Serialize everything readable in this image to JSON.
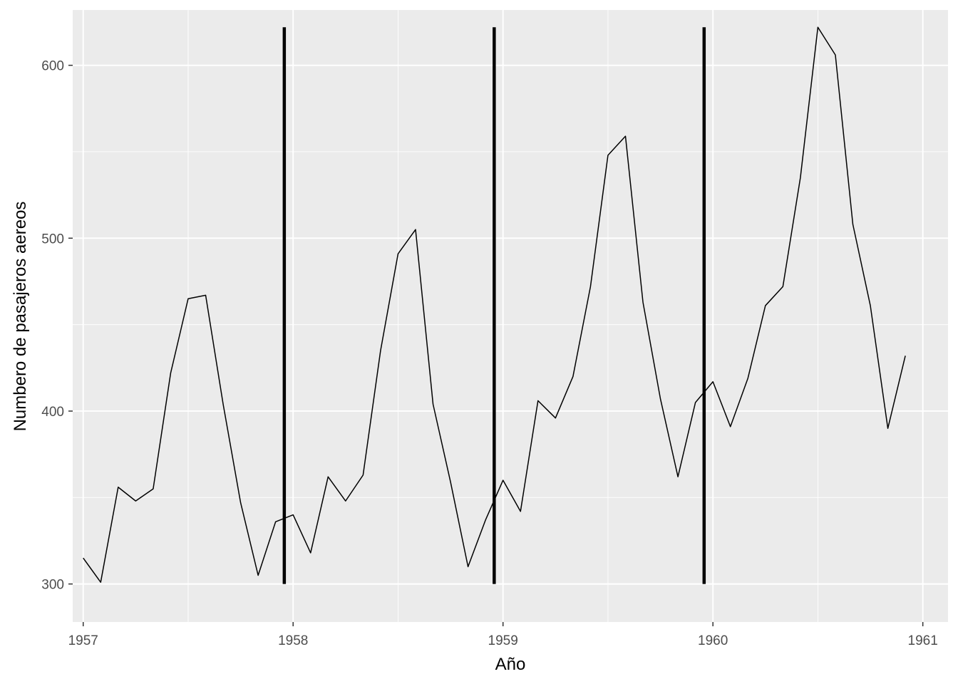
{
  "chart_data": {
    "type": "line",
    "title": "",
    "xlabel": "Año",
    "ylabel": "Numbero de pasajeros aereos",
    "xlim": [
      1956.95,
      1961.12
    ],
    "ylim": [
      278,
      632
    ],
    "x_ticks": [
      1957,
      1958,
      1959,
      1960,
      1961
    ],
    "x_tick_labels": [
      "1957",
      "1958",
      "1959",
      "1960",
      "1961"
    ],
    "y_ticks": [
      300,
      400,
      500,
      600
    ],
    "y_tick_labels": [
      "300",
      "400",
      "500",
      "600"
    ],
    "grid": true,
    "legend": "none",
    "series": [
      {
        "x_start": 1957,
        "frequency": 12,
        "values": [
          315,
          301,
          356,
          348,
          355,
          422,
          465,
          467,
          404,
          347,
          305,
          336,
          340,
          318,
          362,
          348,
          363,
          435,
          491,
          505,
          404,
          359,
          310,
          337,
          360,
          342,
          406,
          396,
          420,
          472,
          548,
          559,
          463,
          407,
          362,
          405,
          417,
          391,
          419,
          461,
          472,
          535,
          622,
          606,
          508,
          461,
          390,
          432
        ]
      }
    ],
    "vertical_lines": [
      {
        "x": 1957.958,
        "y_from": 300,
        "y_to": 622
      },
      {
        "x": 1958.958,
        "y_from": 300,
        "y_to": 622
      },
      {
        "x": 1959.958,
        "y_from": 300,
        "y_to": 622
      }
    ],
    "colors": {
      "panel_background": "#ebebeb",
      "grid": "#ffffff",
      "line": "#000000",
      "vertical_lines": "#000000"
    }
  }
}
